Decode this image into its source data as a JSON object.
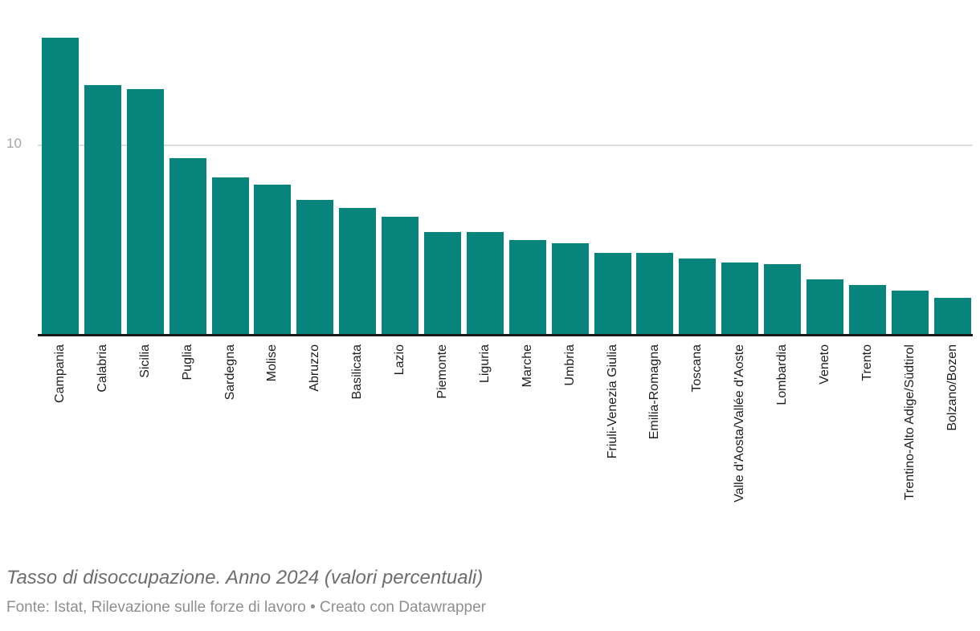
{
  "chart_data": {
    "type": "bar",
    "title": "",
    "xlabel": "",
    "ylabel": "",
    "categories": [
      "Campania",
      "Calabria",
      "Sicilia",
      "Puglia",
      "Sardegna",
      "Molise",
      "Abruzzo",
      "Basilicata",
      "Lazio",
      "Piemonte",
      "Liguria",
      "Marche",
      "Umbria",
      "Friuli-Venezia Giulia",
      "Emilia-Romagna",
      "Toscana",
      "Valle d'Aosta/Vallée d'Aoste",
      "Lombardia",
      "Veneto",
      "Trento",
      "Trentino-Alto Adige/Südtirol",
      "Bolzano/Bozen"
    ],
    "values": [
      15.7,
      13.2,
      13.0,
      9.3,
      8.3,
      7.9,
      7.1,
      6.7,
      6.2,
      5.4,
      5.4,
      5.0,
      4.8,
      4.3,
      4.3,
      4.0,
      3.8,
      3.7,
      2.9,
      2.6,
      2.3,
      1.9
    ],
    "ylim": [
      0,
      17.7
    ],
    "y_ticks": [
      "10"
    ],
    "grid": "single horizontal gridline at y=10, drawn behind bars",
    "legend": "none",
    "x_labels_rotated_90deg": true
  },
  "footer": {
    "note": "Tasso di disoccupazione. Anno 2024 (valori percentuali)",
    "source": "Fonte: Istat, Rilevazione sulle forze di lavoro",
    "separator": "•",
    "attribution": "Creato con Datawrapper"
  },
  "colors": {
    "bar": "#07847c",
    "axis": "#1a1a1a",
    "gridline": "#dedede",
    "tick_label": "#a4a4a4",
    "x_label": "#1d1d1d",
    "note": "#6d6d6d",
    "source": "#8f8f8f",
    "background": "#ffffff"
  }
}
